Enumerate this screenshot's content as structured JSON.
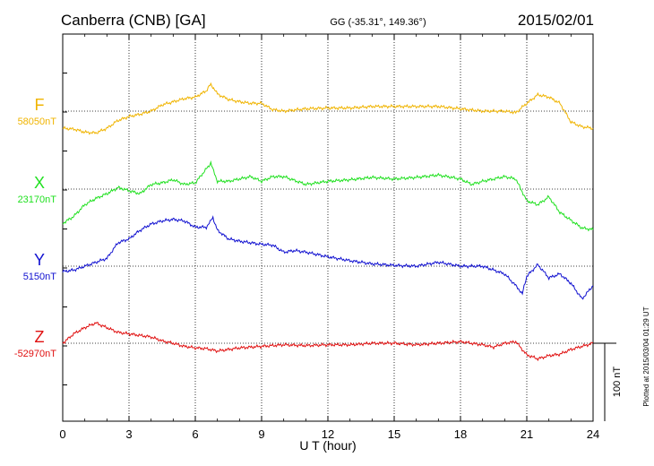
{
  "header": {
    "station": "Canberra (CNB)  [GA]",
    "coords": "GG (-35.31°, 149.36°)",
    "date": "2015/02/01"
  },
  "footer_note": "Plotted at 2015/03/04 01:29 UT",
  "scale_bar": {
    "label": "100 nT",
    "value": 100
  },
  "chart_data": {
    "type": "line",
    "xlabel": "U T (hour)",
    "xlim": [
      0,
      24
    ],
    "x_ticks": [
      "0",
      "3",
      "6",
      "9",
      "12",
      "15",
      "18",
      "21",
      "24"
    ],
    "grid": true,
    "units_per_band": 100,
    "series": [
      {
        "name": "F",
        "baseline_label": "58050nT",
        "baseline": 58050,
        "color": "#f0b400",
        "points": [
          [
            0,
            58028
          ],
          [
            0.5,
            58027
          ],
          [
            1,
            58023
          ],
          [
            1.5,
            58022
          ],
          [
            2,
            58028
          ],
          [
            2.5,
            58038
          ],
          [
            3,
            58043
          ],
          [
            3.5,
            58046
          ],
          [
            4,
            58050
          ],
          [
            4.5,
            58058
          ],
          [
            5,
            58062
          ],
          [
            5.5,
            58066
          ],
          [
            6,
            58068
          ],
          [
            6.5,
            58076
          ],
          [
            6.7,
            58085
          ],
          [
            7,
            58072
          ],
          [
            7.5,
            58065
          ],
          [
            8,
            58062
          ],
          [
            8.5,
            58060
          ],
          [
            9,
            58060
          ],
          [
            9.5,
            58052
          ],
          [
            10,
            58050
          ],
          [
            11,
            58053
          ],
          [
            12,
            58054
          ],
          [
            13,
            58054
          ],
          [
            14,
            58056
          ],
          [
            15,
            58056
          ],
          [
            16,
            58056
          ],
          [
            17,
            58056
          ],
          [
            18,
            58053
          ],
          [
            19,
            58050
          ],
          [
            20,
            58050
          ],
          [
            20.5,
            58048
          ],
          [
            21,
            58060
          ],
          [
            21.5,
            58071
          ],
          [
            22,
            58068
          ],
          [
            22.5,
            58060
          ],
          [
            23,
            58036
          ],
          [
            23.5,
            58030
          ],
          [
            24,
            58028
          ]
        ]
      },
      {
        "name": "X",
        "baseline_label": "23170nT",
        "baseline": 23170,
        "color": "#20e020",
        "points": [
          [
            0,
            23126
          ],
          [
            0.5,
            23135
          ],
          [
            1,
            23150
          ],
          [
            1.5,
            23158
          ],
          [
            2,
            23164
          ],
          [
            2.5,
            23172
          ],
          [
            3,
            23168
          ],
          [
            3.5,
            23164
          ],
          [
            4,
            23176
          ],
          [
            4.5,
            23178
          ],
          [
            5,
            23182
          ],
          [
            5.5,
            23176
          ],
          [
            6,
            23178
          ],
          [
            6.5,
            23196
          ],
          [
            6.7,
            23203
          ],
          [
            7,
            23180
          ],
          [
            7.5,
            23180
          ],
          [
            8,
            23183
          ],
          [
            8.5,
            23186
          ],
          [
            9,
            23180
          ],
          [
            9.5,
            23186
          ],
          [
            10,
            23186
          ],
          [
            11,
            23176
          ],
          [
            12,
            23180
          ],
          [
            13,
            23182
          ],
          [
            14,
            23185
          ],
          [
            15,
            23183
          ],
          [
            16,
            23185
          ],
          [
            17,
            23188
          ],
          [
            18,
            23183
          ],
          [
            18.5,
            23176
          ],
          [
            19,
            23180
          ],
          [
            20,
            23186
          ],
          [
            20.5,
            23183
          ],
          [
            21,
            23155
          ],
          [
            21.5,
            23150
          ],
          [
            22,
            23160
          ],
          [
            22.5,
            23140
          ],
          [
            23,
            23130
          ],
          [
            23.5,
            23120
          ],
          [
            24,
            23118
          ]
        ]
      },
      {
        "name": "Y",
        "baseline_label": "5150nT",
        "baseline": 5150,
        "color": "#1010d0",
        "points": [
          [
            0,
            5143
          ],
          [
            0.5,
            5145
          ],
          [
            1,
            5150
          ],
          [
            1.5,
            5155
          ],
          [
            2,
            5160
          ],
          [
            2.5,
            5180
          ],
          [
            3,
            5185
          ],
          [
            3.5,
            5196
          ],
          [
            4,
            5204
          ],
          [
            4.5,
            5208
          ],
          [
            5,
            5210
          ],
          [
            5.5,
            5208
          ],
          [
            6,
            5200
          ],
          [
            6.5,
            5200
          ],
          [
            6.8,
            5212
          ],
          [
            7,
            5196
          ],
          [
            7.5,
            5185
          ],
          [
            8,
            5182
          ],
          [
            8.5,
            5180
          ],
          [
            9,
            5178
          ],
          [
            9.5,
            5177
          ],
          [
            10,
            5168
          ],
          [
            10.5,
            5170
          ],
          [
            11,
            5168
          ],
          [
            12,
            5162
          ],
          [
            13,
            5157
          ],
          [
            14,
            5153
          ],
          [
            15,
            5151
          ],
          [
            16,
            5150
          ],
          [
            17,
            5155
          ],
          [
            18,
            5150
          ],
          [
            19,
            5150
          ],
          [
            20,
            5140
          ],
          [
            20.5,
            5125
          ],
          [
            20.8,
            5115
          ],
          [
            21,
            5137
          ],
          [
            21.5,
            5152
          ],
          [
            22,
            5135
          ],
          [
            22.5,
            5140
          ],
          [
            23,
            5128
          ],
          [
            23.5,
            5108
          ],
          [
            24,
            5125
          ]
        ]
      },
      {
        "name": "Z",
        "baseline_label": "-52970nT",
        "baseline": -52970,
        "color": "#e01010",
        "points": [
          [
            0,
            -52970
          ],
          [
            0.5,
            -52958
          ],
          [
            1,
            -52950
          ],
          [
            1.5,
            -52944
          ],
          [
            2,
            -52950
          ],
          [
            2.5,
            -52956
          ],
          [
            3,
            -52958
          ],
          [
            3.5,
            -52960
          ],
          [
            4,
            -52962
          ],
          [
            4.5,
            -52967
          ],
          [
            5,
            -52970
          ],
          [
            5.5,
            -52974
          ],
          [
            6,
            -52976
          ],
          [
            6.5,
            -52977
          ],
          [
            7,
            -52980
          ],
          [
            7.5,
            -52978
          ],
          [
            8,
            -52976
          ],
          [
            9,
            -52974
          ],
          [
            10,
            -52972
          ],
          [
            11,
            -52973
          ],
          [
            12,
            -52972
          ],
          [
            13,
            -52972
          ],
          [
            14,
            -52970
          ],
          [
            15,
            -52970
          ],
          [
            16,
            -52972
          ],
          [
            17,
            -52970
          ],
          [
            18,
            -52968
          ],
          [
            19,
            -52972
          ],
          [
            19.5,
            -52975
          ],
          [
            20,
            -52970
          ],
          [
            20.5,
            -52968
          ],
          [
            21,
            -52985
          ],
          [
            21.5,
            -52990
          ],
          [
            22,
            -52986
          ],
          [
            22.5,
            -52984
          ],
          [
            23,
            -52978
          ],
          [
            23.5,
            -52974
          ],
          [
            24,
            -52970
          ]
        ]
      }
    ]
  }
}
